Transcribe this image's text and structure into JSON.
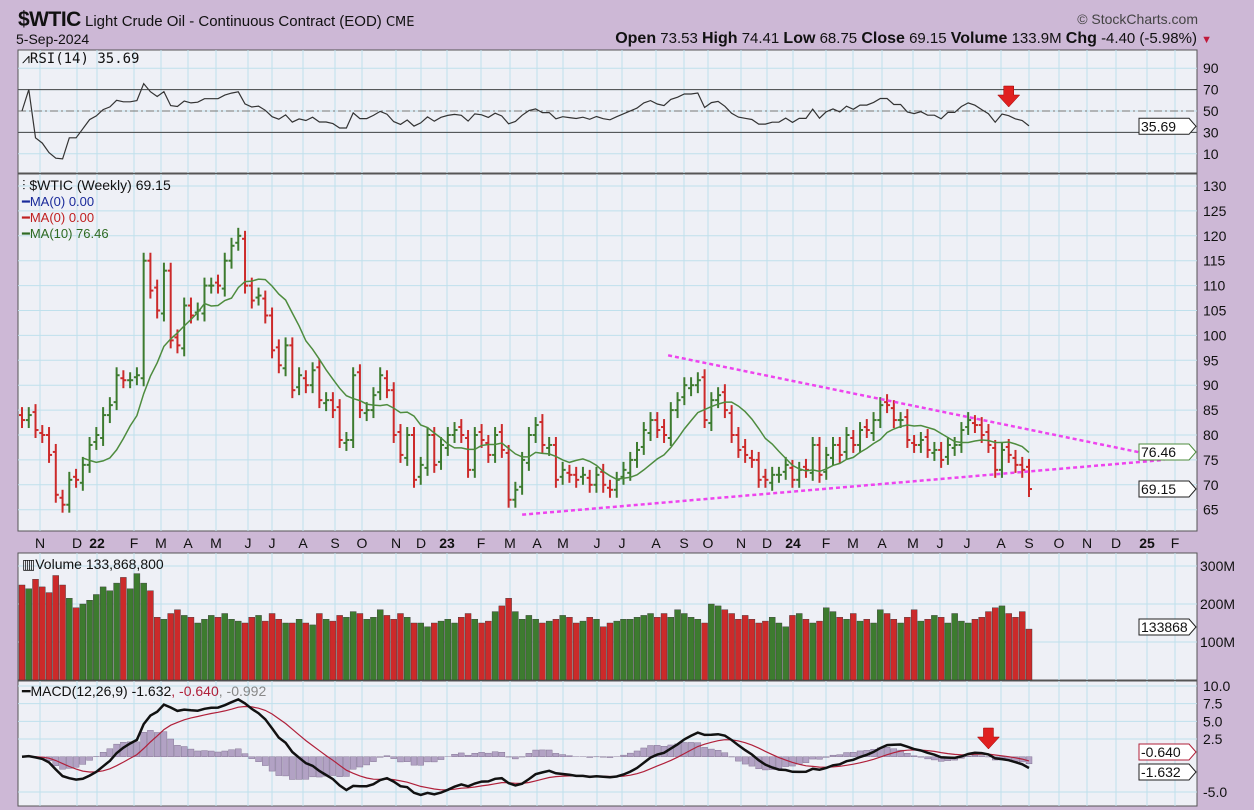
{
  "header": {
    "symbol": "$WTIC",
    "name": "Light Crude Oil - Continuous Contract (EOD)",
    "exchange": "CME",
    "date": "5-Sep-2024",
    "copyright": "© StockCharts.com",
    "open_label": "Open",
    "open": "73.53",
    "high_label": "High",
    "high": "74.41",
    "low_label": "Low",
    "low": "68.75",
    "close_label": "Close",
    "close": "69.15",
    "volume_label": "Volume",
    "volume": "133.9M",
    "chg_label": "Chg",
    "chg": "-4.40 (-5.98%)",
    "chg_arrow": "▼"
  },
  "legends": {
    "rsi": "RSI(14) 35.69",
    "price": "$WTIC (Weekly) 69.15",
    "ma1": "MA(0) 0.00",
    "ma2": "MA(0) 0.00",
    "ma3": "MA(10) 76.46",
    "volume": "Volume 133,868,800",
    "macd_main": "MACD(12,26,9) -1.632",
    "macd_sig": ", -0.640",
    "macd_hist": ", -0.992"
  },
  "readouts": {
    "rsi": "35.69",
    "ma10": "76.46",
    "close": "69.15",
    "volume": "133868",
    "macd_signal": "-0.640",
    "macd": "-1.632"
  },
  "colors": {
    "background": "#cdb8d6",
    "panel": "#eef0f6",
    "grid": "#bfe0ec",
    "up": "#3d7b2f",
    "down": "#cc2a2a",
    "ma10": "#4e8c3e",
    "trendline": "#ee44ee",
    "hist": "#b2a2c4",
    "signal": "#b0203a",
    "arrow": "#e02020"
  },
  "chart_data": {
    "type": "ohlc",
    "title": "$WTIC Light Crude Oil - Continuous Contract (EOD) Weekly",
    "x_axis_labels": [
      "N",
      "D",
      "22",
      "F",
      "M",
      "A",
      "M",
      "J",
      "J",
      "A",
      "S",
      "O",
      "N",
      "D",
      "23",
      "F",
      "M",
      "A",
      "M",
      "J",
      "J",
      "A",
      "S",
      "O",
      "N",
      "D",
      "24",
      "F",
      "M",
      "A",
      "M",
      "J",
      "J",
      "A",
      "S",
      "O",
      "N",
      "D",
      "25",
      "F"
    ],
    "price_ticks": [
      65,
      70,
      75,
      80,
      85,
      90,
      95,
      100,
      105,
      110,
      115,
      120,
      125,
      130
    ],
    "rsi_ticks": [
      90,
      70,
      50,
      30,
      10
    ],
    "volume_ticks": [
      "300M",
      "200M",
      "100M"
    ],
    "volume_tick_values": [
      300,
      200,
      100
    ],
    "macd_ticks": [
      "10.0",
      "7.5",
      "5.0",
      "2.5",
      "-5.0"
    ],
    "macd_tick_values": [
      10,
      7.5,
      5,
      2.5,
      -5
    ],
    "weekly_close": [
      83,
      84,
      81,
      80,
      76,
      68,
      66,
      71,
      71,
      74,
      78,
      80,
      84,
      86,
      92,
      91,
      91,
      92,
      115,
      109,
      105,
      113,
      99,
      98,
      106,
      104,
      105,
      110,
      110,
      110,
      115,
      118,
      120,
      110,
      107,
      108,
      104,
      97,
      94,
      98,
      89,
      92,
      90,
      93,
      87,
      87,
      85,
      79,
      79,
      92,
      85,
      85,
      88,
      92,
      89,
      80,
      76,
      80,
      71,
      74,
      80,
      74,
      78,
      80,
      81,
      80,
      73,
      80,
      79,
      76,
      80,
      77,
      67,
      69,
      75,
      80,
      82,
      78,
      78,
      71,
      73,
      72,
      71,
      72,
      70,
      72,
      70,
      69,
      71,
      73,
      75,
      77,
      81,
      83,
      81,
      80,
      85,
      87,
      90,
      90,
      91,
      83,
      87,
      88,
      85,
      80,
      77,
      76,
      75,
      71,
      71,
      72,
      72,
      74,
      71,
      73,
      73,
      78,
      72,
      76,
      78,
      76,
      80,
      78,
      81,
      81,
      83,
      86,
      86,
      83,
      83,
      79,
      78,
      79,
      77,
      77,
      75,
      78,
      78,
      81,
      83,
      82,
      80,
      78,
      73,
      77,
      76,
      74,
      73,
      69.15
    ],
    "weekly_volume_millions": [
      250,
      240,
      265,
      245,
      230,
      275,
      250,
      215,
      190,
      200,
      210,
      225,
      245,
      235,
      255,
      270,
      240,
      280,
      255,
      235,
      165,
      160,
      175,
      185,
      170,
      165,
      150,
      160,
      170,
      165,
      175,
      160,
      155,
      150,
      165,
      170,
      155,
      175,
      160,
      150,
      150,
      160,
      150,
      145,
      175,
      160,
      155,
      170,
      165,
      180,
      175,
      160,
      165,
      185,
      170,
      160,
      175,
      165,
      150,
      150,
      140,
      150,
      155,
      160,
      150,
      165,
      175,
      160,
      150,
      155,
      180,
      195,
      215,
      180,
      160,
      170,
      160,
      150,
      155,
      160,
      170,
      165,
      150,
      155,
      165,
      160,
      140,
      150,
      155,
      160,
      160,
      165,
      170,
      175,
      165,
      175,
      165,
      185,
      175,
      165,
      160,
      150,
      200,
      195,
      185,
      175,
      160,
      170,
      160,
      150,
      155,
      165,
      150,
      140,
      170,
      175,
      160,
      150,
      155,
      190,
      180,
      165,
      160,
      175,
      155,
      160,
      150,
      185,
      175,
      160,
      150,
      165,
      185,
      155,
      160,
      170,
      165,
      150,
      175,
      155,
      150,
      160,
      165,
      180,
      190,
      195,
      175,
      165,
      180,
      134
    ],
    "trendlines": [
      {
        "name": "upper",
        "from": {
          "week": 95.6,
          "price": 96
        },
        "to": {
          "week": 169,
          "price": 75.5
        }
      },
      {
        "name": "lower",
        "from": {
          "week": 74,
          "price": 64
        },
        "to": {
          "week": 169,
          "price": 75
        }
      }
    ],
    "signal_arrows": [
      {
        "panel": "rsi",
        "week": 146
      },
      {
        "panel": "macd",
        "week": 143
      }
    ]
  }
}
